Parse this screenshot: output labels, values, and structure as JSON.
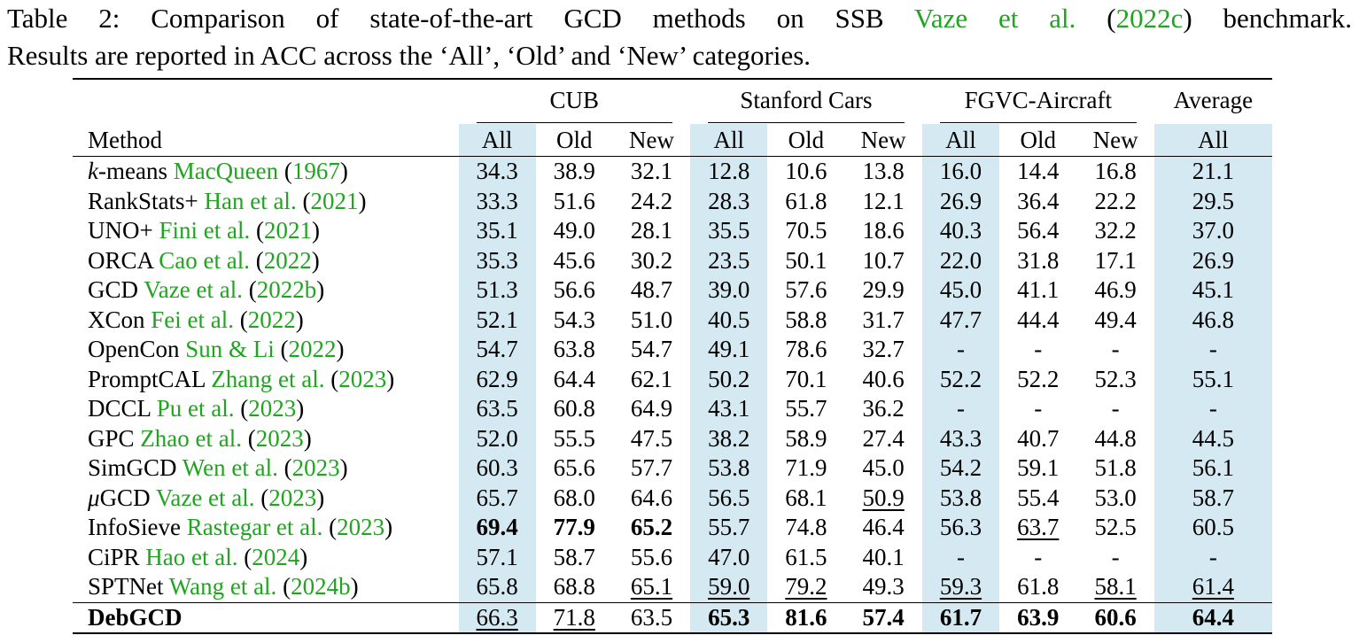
{
  "caption": {
    "line1_prefix": "Table 2:  Comparison of state-of-the-art GCD methods on SSB",
    "line1_cite_author": "Vaze et al.",
    "line1_cite_year": "2022c",
    "line1_suffix": "benchmark.",
    "line2": "Results are reported in ACC across the ‘All’, ‘Old’ and ‘New’ categories."
  },
  "header": {
    "groups": [
      "CUB",
      "Stanford Cars",
      "FGVC-Aircraft",
      "Average"
    ],
    "method_label": "Method",
    "subcols": [
      "All",
      "Old",
      "New",
      "All",
      "Old",
      "New",
      "All",
      "Old",
      "New",
      "All"
    ]
  },
  "rows": [
    {
      "name": "k-means",
      "name_italic_prefix": "k",
      "name_rest": "-means",
      "author": "MacQueen",
      "year": "1967",
      "values": [
        "34.3",
        "38.9",
        "32.1",
        "12.8",
        "10.6",
        "13.8",
        "16.0",
        "14.4",
        "16.8",
        "21.1"
      ],
      "bold": [],
      "underline": []
    },
    {
      "name_rest": "RankStats+",
      "author": "Han et al.",
      "year": "2021",
      "values": [
        "33.3",
        "51.6",
        "24.2",
        "28.3",
        "61.8",
        "12.1",
        "26.9",
        "36.4",
        "22.2",
        "29.5"
      ],
      "bold": [],
      "underline": []
    },
    {
      "name_rest": "UNO+",
      "author": "Fini et al.",
      "year": "2021",
      "values": [
        "35.1",
        "49.0",
        "28.1",
        "35.5",
        "70.5",
        "18.6",
        "40.3",
        "56.4",
        "32.2",
        "37.0"
      ],
      "bold": [],
      "underline": []
    },
    {
      "name_rest": "ORCA",
      "author": "Cao et al.",
      "year": "2022",
      "values": [
        "35.3",
        "45.6",
        "30.2",
        "23.5",
        "50.1",
        "10.7",
        "22.0",
        "31.8",
        "17.1",
        "26.9"
      ],
      "bold": [],
      "underline": []
    },
    {
      "name_rest": "GCD",
      "author": "Vaze et al.",
      "year": "2022b",
      "values": [
        "51.3",
        "56.6",
        "48.7",
        "39.0",
        "57.6",
        "29.9",
        "45.0",
        "41.1",
        "46.9",
        "45.1"
      ],
      "bold": [],
      "underline": []
    },
    {
      "name_rest": "XCon",
      "author": "Fei et al.",
      "year": "2022",
      "values": [
        "52.1",
        "54.3",
        "51.0",
        "40.5",
        "58.8",
        "31.7",
        "47.7",
        "44.4",
        "49.4",
        "46.8"
      ],
      "bold": [],
      "underline": []
    },
    {
      "name_rest": "OpenCon",
      "author": "Sun & Li",
      "year": "2022",
      "values": [
        "54.7",
        "63.8",
        "54.7",
        "49.1",
        "78.6",
        "32.7",
        "-",
        "-",
        "-",
        "-"
      ],
      "bold": [],
      "underline": []
    },
    {
      "name_rest": "PromptCAL",
      "author": "Zhang et al.",
      "year": "2023",
      "values": [
        "62.9",
        "64.4",
        "62.1",
        "50.2",
        "70.1",
        "40.6",
        "52.2",
        "52.2",
        "52.3",
        "55.1"
      ],
      "bold": [],
      "underline": []
    },
    {
      "name_rest": "DCCL",
      "author": "Pu et al.",
      "year": "2023",
      "values": [
        "63.5",
        "60.8",
        "64.9",
        "43.1",
        "55.7",
        "36.2",
        "-",
        "-",
        "-",
        "-"
      ],
      "bold": [],
      "underline": []
    },
    {
      "name_rest": "GPC",
      "author": "Zhao et al.",
      "year": "2023",
      "values": [
        "52.0",
        "55.5",
        "47.5",
        "38.2",
        "58.9",
        "27.4",
        "43.3",
        "40.7",
        "44.8",
        "44.5"
      ],
      "bold": [],
      "underline": []
    },
    {
      "name_rest": "SimGCD",
      "author": "Wen et al.",
      "year": "2023",
      "values": [
        "60.3",
        "65.6",
        "57.7",
        "53.8",
        "71.9",
        "45.0",
        "54.2",
        "59.1",
        "51.8",
        "56.1"
      ],
      "bold": [],
      "underline": []
    },
    {
      "name": "μGCD",
      "name_italic_prefix": "μ",
      "name_rest": "GCD",
      "author": "Vaze et al.",
      "year": "2023",
      "values": [
        "65.7",
        "68.0",
        "64.6",
        "56.5",
        "68.1",
        "50.9",
        "53.8",
        "55.4",
        "53.0",
        "58.7"
      ],
      "bold": [],
      "underline": [
        5
      ]
    },
    {
      "name_rest": "InfoSieve",
      "author": "Rastegar et al.",
      "year": "2023",
      "values": [
        "69.4",
        "77.9",
        "65.2",
        "55.7",
        "74.8",
        "46.4",
        "56.3",
        "63.7",
        "52.5",
        "60.5"
      ],
      "bold": [
        0,
        1,
        2
      ],
      "underline": [
        7
      ]
    },
    {
      "name_rest": "CiPR",
      "author": "Hao et al.",
      "year": "2024",
      "values": [
        "57.1",
        "58.7",
        "55.6",
        "47.0",
        "61.5",
        "40.1",
        "-",
        "-",
        "-",
        "-"
      ],
      "bold": [],
      "underline": []
    },
    {
      "name_rest": "SPTNet",
      "author": "Wang et al.",
      "year": "2024b",
      "values": [
        "65.8",
        "68.8",
        "65.1",
        "59.0",
        "79.2",
        "49.3",
        "59.3",
        "61.8",
        "58.1",
        "61.4"
      ],
      "bold": [],
      "underline": [
        2,
        3,
        4,
        6,
        8,
        9
      ]
    }
  ],
  "final_row": {
    "name": "DebGCD",
    "values": [
      "66.3",
      "71.8",
      "63.5",
      "65.3",
      "81.6",
      "57.4",
      "61.7",
      "63.9",
      "60.6",
      "64.4"
    ],
    "bold": [
      3,
      4,
      5,
      6,
      7,
      8,
      9
    ],
    "underline": [
      0,
      1
    ]
  },
  "colors": {
    "citation_green": "#1fa51f",
    "highlight_blue": "#d4e9f1"
  }
}
